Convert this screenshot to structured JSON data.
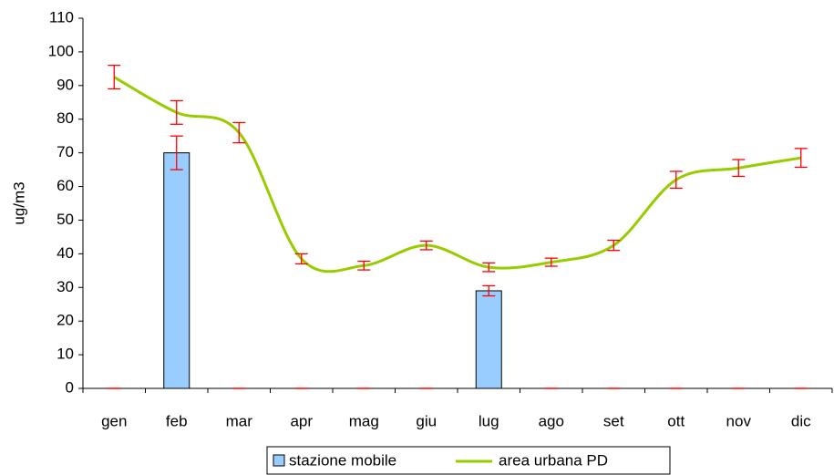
{
  "chart_data": {
    "type": "bar-line",
    "y_label": "ug/m3",
    "categories": [
      "gen",
      "feb",
      "mar",
      "apr",
      "mag",
      "giu",
      "lug",
      "ago",
      "set",
      "ott",
      "nov",
      "dic"
    ],
    "series": [
      {
        "name": "stazione mobile",
        "type": "bar",
        "color": "#99ccff",
        "error_color": "#ff0000",
        "values": [
          0,
          70,
          0,
          0,
          0,
          0,
          29,
          0,
          0,
          0,
          0,
          0
        ],
        "errors": [
          0,
          5,
          0,
          0,
          0,
          0,
          1.5,
          0,
          0,
          0,
          0,
          0
        ]
      },
      {
        "name": "area urbana PD",
        "type": "line",
        "color": "#99cc00",
        "error_color": "#ff0000",
        "values": [
          92.5,
          82,
          76,
          38.5,
          36.5,
          42.5,
          36,
          37.5,
          42.5,
          62,
          65.5,
          68.5
        ],
        "errors": [
          3.5,
          3.5,
          3,
          1.5,
          1.3,
          1.3,
          1.3,
          1.2,
          1.5,
          2.5,
          2.5,
          2.8
        ]
      }
    ],
    "ylim": [
      0,
      110
    ],
    "yticks": [
      0,
      10,
      20,
      30,
      40,
      50,
      60,
      70,
      80,
      90,
      100,
      110
    ],
    "grid": false,
    "legend": "bottom"
  }
}
